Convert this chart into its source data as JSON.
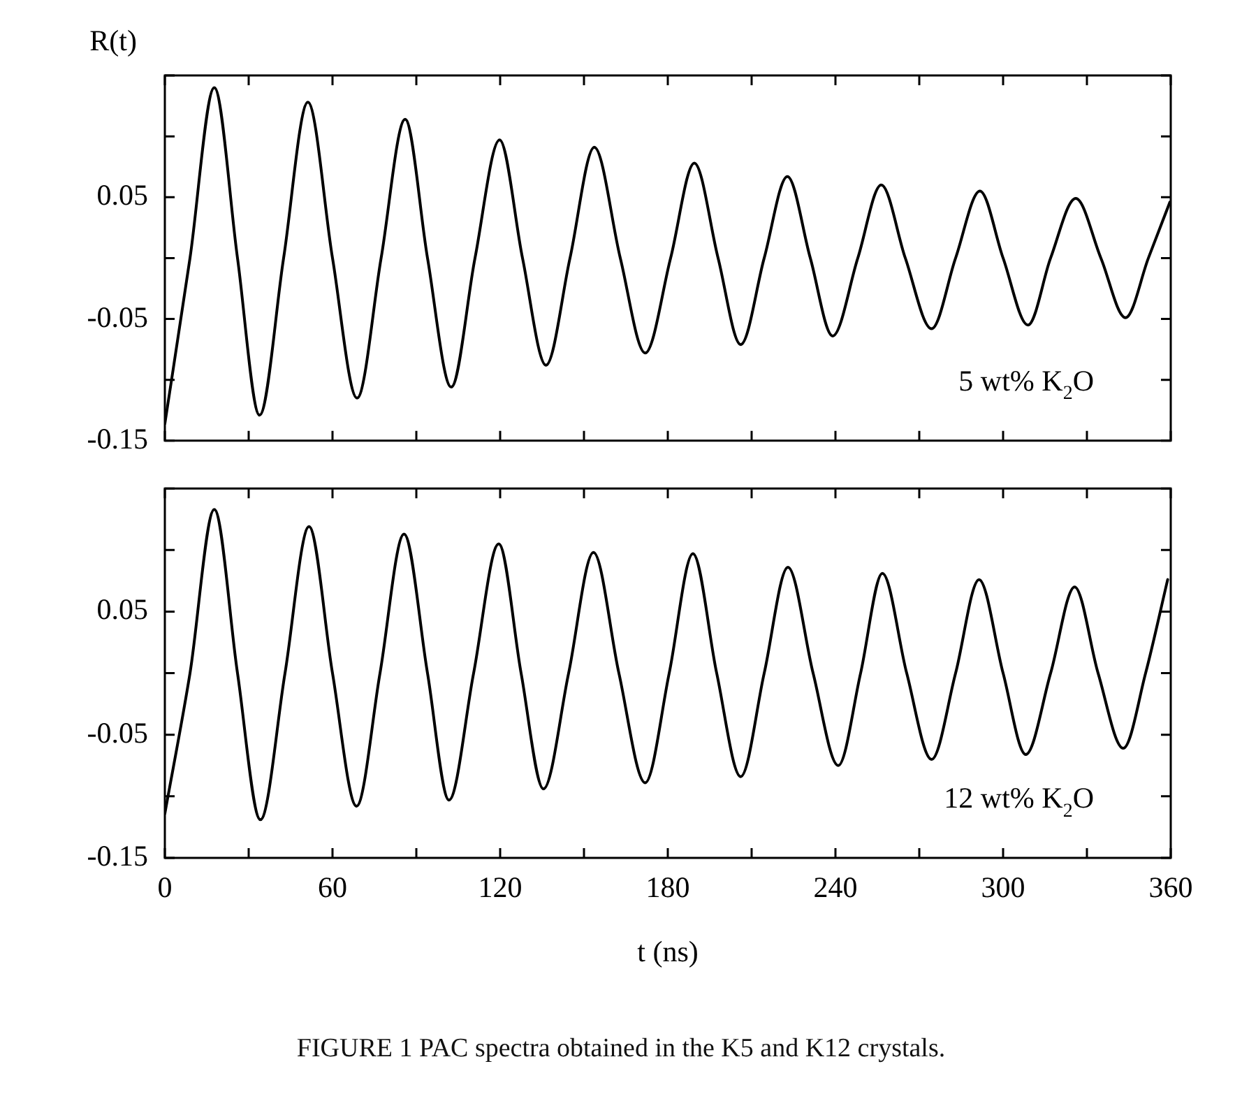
{
  "chart_data": [
    {
      "type": "line",
      "ylabel": "R(t)",
      "annotations": [
        "5 wt% K$_{2}$O"
      ],
      "color": "#000000",
      "marker": "none",
      "line_style": "solid",
      "tick_labels": "y",
      "x": [
        0,
        9,
        17.7,
        26,
        33.9,
        42.5,
        51.2,
        60,
        68.8,
        77.4,
        86,
        94,
        102.5,
        111,
        119.8,
        128,
        136.4,
        145,
        153.7,
        163,
        171.9,
        181,
        189.5,
        198,
        206.1,
        214.5,
        222.8,
        231,
        239,
        248,
        256.4,
        265,
        274.4,
        283,
        291.7,
        300,
        308.9,
        317,
        326,
        335,
        343.8,
        352,
        359.7
      ],
      "values": [
        -0.136,
        0,
        0.14,
        0,
        -0.129,
        0,
        0.128,
        0,
        -0.115,
        0,
        0.114,
        0,
        -0.106,
        0,
        0.097,
        0,
        -0.088,
        0,
        0.091,
        0,
        -0.078,
        0,
        0.078,
        0,
        -0.071,
        0,
        0.067,
        0,
        -0.064,
        0,
        0.06,
        0,
        -0.058,
        0,
        0.055,
        0,
        -0.055,
        0,
        0.049,
        0,
        -0.049,
        0,
        0.046
      ],
      "xlim": [
        0,
        360
      ],
      "xticks": [
        0,
        {
          "value": 30,
          "label": null
        },
        60,
        {
          "value": 90,
          "label": null
        },
        120,
        {
          "value": 150,
          "label": null
        },
        180,
        {
          "value": 210,
          "label": null
        },
        240,
        {
          "value": 270,
          "label": null
        },
        300,
        {
          "value": 330,
          "label": null
        },
        360
      ],
      "ylim": [
        -0.15,
        0.15
      ],
      "yticks": [
        -0.15,
        {
          "value": -0.1,
          "label": null
        },
        -0.05,
        {
          "value": 0,
          "label": null
        },
        0.05,
        {
          "value": 0.1,
          "label": null
        },
        {
          "value": 0.15,
          "label": null
        }
      ]
    },
    {
      "type": "line",
      "xlabel": "t (ns)",
      "annotations": [
        "12 wt% K$_{2}$O",
        "FIGURE 1   PAC spectra obtained in the K5 and K12 crystals."
      ],
      "color": "#000000",
      "marker": "none",
      "line_style": "solid",
      "x": [
        0,
        9,
        17.7,
        26,
        34.2,
        43,
        51.6,
        60,
        68.6,
        77,
        85.6,
        94,
        101.7,
        110.5,
        119.5,
        127.5,
        135.5,
        144.5,
        153.4,
        162.5,
        171.9,
        180.5,
        189,
        197.5,
        206.1,
        214.5,
        223,
        232,
        241,
        249,
        256.8,
        265.5,
        274.4,
        283,
        291.4,
        300,
        308.1,
        317,
        325.6,
        334,
        343,
        351,
        358.9
      ],
      "values": [
        -0.114,
        0,
        0.133,
        0,
        -0.119,
        0,
        0.119,
        0,
        -0.108,
        0,
        0.113,
        0,
        -0.103,
        0,
        0.105,
        0,
        -0.094,
        0,
        0.098,
        0,
        -0.089,
        0,
        0.097,
        0,
        -0.084,
        0,
        0.086,
        0,
        -0.075,
        0,
        0.081,
        0,
        -0.07,
        0,
        0.076,
        0,
        -0.066,
        0,
        0.07,
        0,
        -0.061,
        0,
        0.076
      ],
      "xlim": [
        0,
        360
      ],
      "xticks": [
        0,
        {
          "value": 30,
          "label": null
        },
        60,
        {
          "value": 90,
          "label": null
        },
        120,
        {
          "value": 150,
          "label": null
        },
        180,
        {
          "value": 210,
          "label": null
        },
        240,
        {
          "value": 270,
          "label": null
        },
        300,
        {
          "value": 330,
          "label": null
        },
        360
      ],
      "ylim": [
        -0.15,
        0.15
      ],
      "yticks": [
        -0.15,
        {
          "value": -0.1,
          "label": null
        },
        -0.05,
        {
          "value": 0,
          "label": null
        },
        0.05,
        {
          "value": 0.1,
          "label": null
        },
        {
          "value": 0.15,
          "label": null
        }
      ]
    }
  ]
}
